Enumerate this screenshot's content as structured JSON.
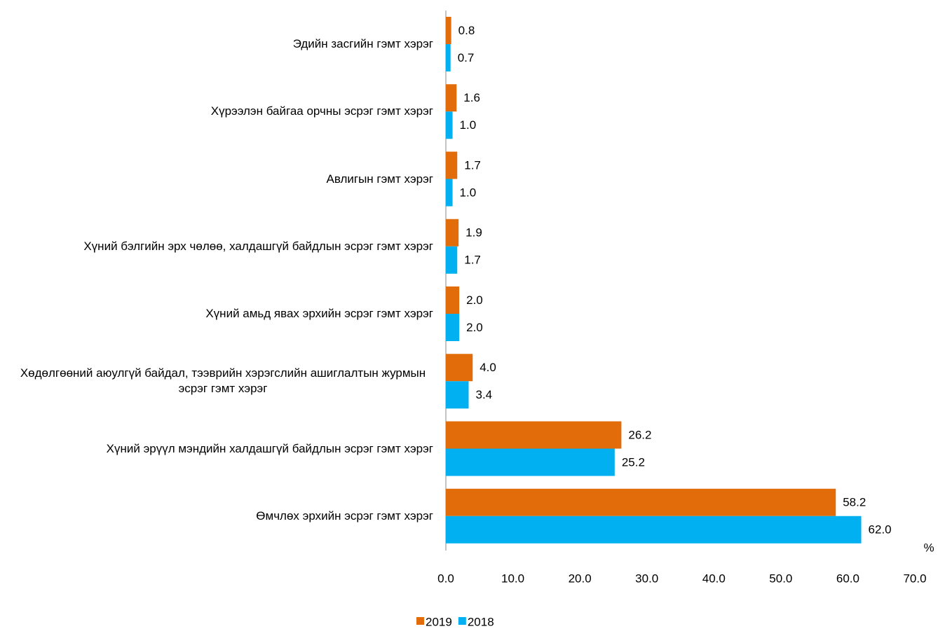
{
  "chart_data": {
    "type": "barh",
    "categories": [
      "Эдийн засгийн гэмт хэрэг",
      "Хүрээлэн байгаа орчны эсрэг гэмт хэрэг",
      "Авлигын гэмт хэрэг",
      "Хүний бэлгийн эрх чөлөө, халдашгүй байдлын эсрэг гэмт хэрэг",
      "Хүний амьд явах эрхийн эсрэг гэмт хэрэг",
      "Хөдөлгөөний аюулгүй байдал, тээврийн хэрэгслийн ашиглалтын журмын эсрэг гэмт хэрэг",
      "Хүний эрүүл мэндийн халдашгүй байдлын эсрэг гэмт хэрэг",
      "Өмчлөх эрхийн эсрэг гэмт хэрэг"
    ],
    "series": [
      {
        "name": "2019",
        "color": "#e36c0a",
        "values": [
          0.8,
          1.6,
          1.7,
          1.9,
          2.0,
          4.0,
          26.2,
          58.2
        ],
        "value_labels": [
          "0.8",
          "1.6",
          "1.7",
          "1.9",
          "2.0",
          "4.0",
          "26.2",
          "58.2"
        ]
      },
      {
        "name": "2018",
        "color": "#00b0f0",
        "values": [
          0.7,
          1.0,
          1.0,
          1.7,
          2.0,
          3.4,
          25.2,
          62.0
        ],
        "value_labels": [
          "0.7",
          "1.0",
          "1.0",
          "1.7",
          "2.0",
          "3.4",
          "25.2",
          "62.0"
        ]
      }
    ],
    "xlabel": "%",
    "xlim": [
      0,
      70
    ],
    "xticks": [
      {
        "value": 0,
        "label": "0.0"
      },
      {
        "value": 10,
        "label": "10.0"
      },
      {
        "value": 20,
        "label": "20.0"
      },
      {
        "value": 30,
        "label": "30.0"
      },
      {
        "value": 40,
        "label": "40.0"
      },
      {
        "value": 50,
        "label": "50.0"
      },
      {
        "value": 60,
        "label": "60.0"
      },
      {
        "value": 70,
        "label": "70.0"
      }
    ],
    "grid": false,
    "legend": "bottom"
  }
}
